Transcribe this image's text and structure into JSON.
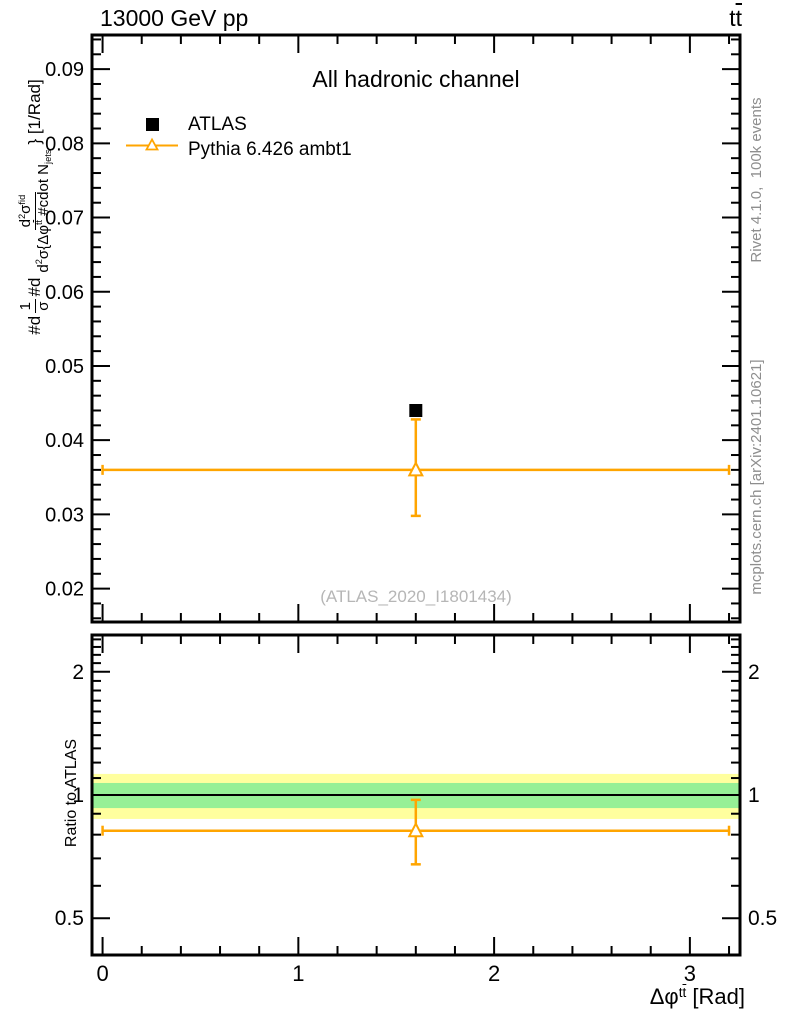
{
  "header": {
    "title_left": "13000 GeV pp",
    "title_right_plain": "tt̄"
  },
  "main_panel": {
    "channel_label": "All hadronic channel",
    "watermark": "(ATLAS_2020_I1801434)"
  },
  "legend": {
    "items": [
      {
        "label": "ATLAS",
        "marker": "filled-square",
        "color": "#000000"
      },
      {
        "label": "Pythia 6.426 ambt1",
        "marker": "open-triangle-line",
        "color": "#ffa500"
      }
    ]
  },
  "side_text": {
    "top": "Rivet 4.1.0,  100k events",
    "bottom": "mcplots.cern.ch [arXiv:2401.10621]"
  },
  "axes": {
    "x_title_plain": "Δφ^tt̄ [Rad]",
    "ratio_label": "Ratio to ATLAS",
    "y_title_plain": "#d 1/σ #d d²σ^fid / d²σ{Δφ^tt̄ #cdot N_jets} [1/Rad]"
  },
  "rich": {
    "title_right": [
      {
        "t": "t"
      },
      {
        "t": "t",
        "bar": true
      }
    ],
    "x_title": [
      {
        "t": "Δφ"
      },
      {
        "t": "t",
        "s": "sup"
      },
      {
        "t": "t",
        "s": "sup",
        "bar": true
      },
      {
        "t": " [Rad]"
      }
    ],
    "ytitle_prefix": [
      {
        "t": "#d"
      }
    ],
    "ytitle_frac1_num": [
      {
        "t": "1"
      }
    ],
    "ytitle_frac1_den": [
      {
        "t": "σ"
      }
    ],
    "ytitle_mid": [
      {
        "t": "#d"
      }
    ],
    "ytitle_frac2_num": [
      {
        "t": "d"
      },
      {
        "t": "2",
        "s": "sup"
      },
      {
        "t": "σ"
      },
      {
        "t": "fid",
        "s": "sup"
      }
    ],
    "ytitle_frac2_den": [
      {
        "t": "d"
      },
      {
        "t": "2",
        "s": "sup"
      },
      {
        "t": "σ"
      },
      {
        "t": "{Δφ"
      },
      {
        "t": "t",
        "s": "sup"
      },
      {
        "t": "t",
        "s": "sup",
        "bar": true
      },
      {
        "t": " #cdot N"
      },
      {
        "t": "jets",
        "s": "sub"
      }
    ],
    "ytitle_suffix": [
      {
        "t": "} [1/Rad]"
      }
    ]
  },
  "colors": {
    "atlas": "#000000",
    "pythia": "#ffa500",
    "band_yellow": "#ffff9e",
    "band_green": "#96f096",
    "gray_text": "#8e8e8e",
    "watermark": "#b6b6b6"
  },
  "chart_data": [
    {
      "type": "scatter",
      "panel": "main",
      "title": "13000 GeV pp",
      "title_right": "tt̄",
      "annotation": "All hadronic channel",
      "watermark": "(ATLAS_2020_I1801434)",
      "xlabel": "Δφ^tt̄ [Rad]",
      "ylabel": "#d 1/σ #d d²σ^fid / d²σ{Δφ^tt̄ #cdot N_jets} [1/Rad]",
      "xlim": [
        -0.054,
        3.256
      ],
      "ylim": [
        0.0155,
        0.0946
      ],
      "yscale": "linear",
      "xticks": [
        0,
        1,
        2,
        3
      ],
      "xtick_minor_step": 0.2,
      "xtick_minor_range": [
        0.2,
        3.2
      ],
      "yticks": [
        0.02,
        0.03,
        0.04,
        0.05,
        0.06,
        0.07,
        0.08,
        0.09
      ],
      "ytick_minor_step": 0.002,
      "ytick_minor_range": [
        0.016,
        0.094
      ],
      "grid": false,
      "legend_position": "upper-left-inside",
      "series": [
        {
          "name": "ATLAS",
          "marker": "filled-square",
          "color": "#000000",
          "points": [
            {
              "x": 1.6,
              "y": 0.044
            }
          ]
        },
        {
          "name": "Pythia 6.426 ambt1",
          "marker": "open-triangle",
          "color": "#ffa500",
          "points": [
            {
              "x": 1.6,
              "y": 0.036,
              "y_lo": 0.0298,
              "y_hi": 0.0428,
              "xbin_lo": 0,
              "xbin_hi": 3.2
            }
          ]
        }
      ]
    },
    {
      "type": "ratio",
      "panel": "ratio",
      "ylabel": "Ratio to ATLAS",
      "xlim": [
        -0.054,
        3.256
      ],
      "ylim": [
        0.4065,
        2.46
      ],
      "yscale": "log",
      "xticks": [
        0,
        1,
        2,
        3
      ],
      "xtick_labels": [
        "0",
        "1",
        "2",
        "3"
      ],
      "xtick_minor_step": 0.2,
      "xtick_minor_range": [
        0.2,
        3.2
      ],
      "yticks": [
        0.5,
        1,
        2
      ],
      "ytick_labels": [
        "0.5",
        "1",
        "2"
      ],
      "ytick_minor": [
        0.6,
        0.7,
        0.8,
        0.9,
        1.1,
        1.2,
        1.3,
        1.4,
        1.5,
        1.6,
        1.7,
        1.8,
        1.9,
        2.1,
        2.2,
        2.3,
        2.4
      ],
      "reference_line": 1.0,
      "bands": [
        {
          "name": "outer-uncertainty-band",
          "color": "#ffff9e",
          "lo": 0.874,
          "hi": 1.126
        },
        {
          "name": "inner-uncertainty-band",
          "color": "#96f096",
          "lo": 0.929,
          "hi": 1.07
        }
      ],
      "series": [
        {
          "name": "Pythia 6.426 ambt1",
          "marker": "open-triangle",
          "color": "#ffa500",
          "points": [
            {
              "x": 1.6,
              "y": 0.818,
              "y_lo": 0.677,
              "y_hi": 0.973,
              "xbin_lo": 0,
              "xbin_hi": 3.2
            }
          ]
        }
      ]
    }
  ]
}
